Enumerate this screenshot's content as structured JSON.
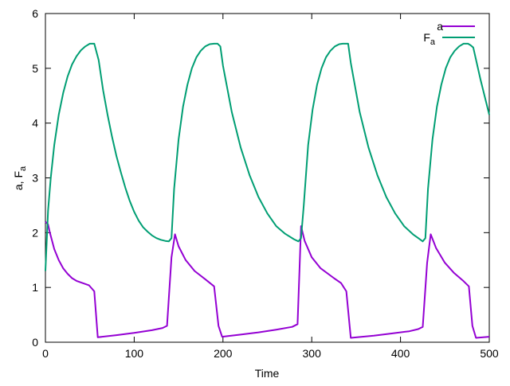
{
  "chart_data": {
    "type": "line",
    "title": "",
    "xlabel": "Time",
    "ylabel": {
      "main": "a, F",
      "sub": "a"
    },
    "xlim": [
      0,
      500
    ],
    "ylim": [
      0,
      6
    ],
    "xticks": [
      0,
      100,
      200,
      300,
      400,
      500
    ],
    "yticks": [
      0,
      1,
      2,
      3,
      4,
      5,
      6
    ],
    "grid": false,
    "legend_position": "top-right",
    "series": [
      {
        "name": "a",
        "name_sub": "",
        "color": "#9400d3",
        "x": [
          0,
          3,
          5,
          10,
          15,
          20,
          25,
          30,
          35,
          42,
          49,
          55,
          59,
          80,
          100,
          120,
          132,
          137,
          142,
          146,
          150,
          158,
          168,
          180,
          190,
          195,
          199,
          220,
          240,
          260,
          278,
          284,
          288,
          292,
          300,
          310,
          325,
          333,
          339,
          344,
          370,
          390,
          410,
          420,
          425,
          430,
          434,
          440,
          450,
          460,
          470,
          477,
          481,
          485,
          500
        ],
        "y": [
          2.2,
          2.15,
          2.0,
          1.7,
          1.5,
          1.35,
          1.25,
          1.17,
          1.12,
          1.08,
          1.04,
          0.93,
          0.09,
          0.13,
          0.17,
          0.22,
          0.26,
          0.3,
          1.55,
          1.97,
          1.75,
          1.5,
          1.3,
          1.15,
          1.02,
          0.3,
          0.1,
          0.14,
          0.18,
          0.23,
          0.28,
          0.33,
          2.12,
          1.85,
          1.55,
          1.35,
          1.17,
          1.08,
          0.93,
          0.08,
          0.12,
          0.16,
          0.2,
          0.24,
          0.28,
          1.45,
          1.97,
          1.72,
          1.45,
          1.27,
          1.13,
          1.02,
          0.3,
          0.08,
          0.1
        ]
      },
      {
        "name": "F",
        "name_sub": "a",
        "color": "#009e73",
        "x": [
          0,
          3,
          6,
          10,
          15,
          20,
          25,
          30,
          35,
          40,
          45,
          50,
          55,
          60,
          65,
          70,
          75,
          80,
          85,
          90,
          95,
          100,
          105,
          110,
          115,
          120,
          125,
          130,
          135,
          139,
          142,
          145,
          150,
          155,
          160,
          165,
          170,
          175,
          180,
          185,
          190,
          194,
          197,
          200,
          210,
          220,
          230,
          240,
          250,
          260,
          270,
          280,
          285,
          288,
          291,
          296,
          301,
          306,
          311,
          316,
          321,
          326,
          331,
          335,
          338,
          341,
          344,
          354,
          364,
          374,
          384,
          394,
          404,
          414,
          420,
          425,
          428,
          431,
          436,
          441,
          446,
          451,
          456,
          461,
          466,
          471,
          476,
          479,
          482,
          490,
          500
        ],
        "y": [
          1.3,
          2.4,
          3.0,
          3.6,
          4.15,
          4.55,
          4.85,
          5.07,
          5.22,
          5.33,
          5.4,
          5.45,
          5.45,
          5.15,
          4.6,
          4.15,
          3.75,
          3.4,
          3.1,
          2.82,
          2.58,
          2.38,
          2.22,
          2.1,
          2.02,
          1.95,
          1.9,
          1.87,
          1.85,
          1.84,
          1.9,
          2.8,
          3.7,
          4.3,
          4.7,
          5.0,
          5.2,
          5.32,
          5.4,
          5.44,
          5.45,
          5.45,
          5.4,
          5.05,
          4.2,
          3.55,
          3.05,
          2.65,
          2.35,
          2.12,
          1.98,
          1.88,
          1.84,
          1.9,
          2.5,
          3.6,
          4.25,
          4.7,
          5.0,
          5.2,
          5.32,
          5.4,
          5.44,
          5.45,
          5.45,
          5.45,
          5.1,
          4.2,
          3.55,
          3.05,
          2.65,
          2.35,
          2.12,
          1.97,
          1.9,
          1.84,
          1.9,
          2.8,
          3.7,
          4.3,
          4.7,
          5.0,
          5.2,
          5.32,
          5.4,
          5.45,
          5.45,
          5.42,
          5.38,
          4.8,
          4.15
        ]
      }
    ]
  }
}
